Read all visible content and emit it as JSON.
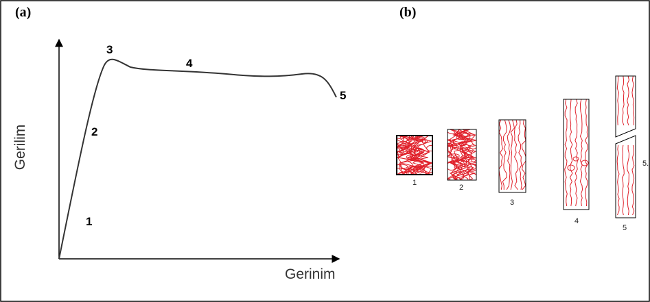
{
  "panel_a": {
    "label": "(a)",
    "y_axis_label": "Gerilim",
    "x_axis_label": "Gerinim",
    "point_labels": [
      "1",
      "2",
      "3",
      "4",
      "5"
    ]
  },
  "panel_b": {
    "label": "(b)",
    "specimen_labels": [
      "1",
      "2",
      "3",
      "4",
      "5"
    ],
    "side_note": "5."
  }
}
